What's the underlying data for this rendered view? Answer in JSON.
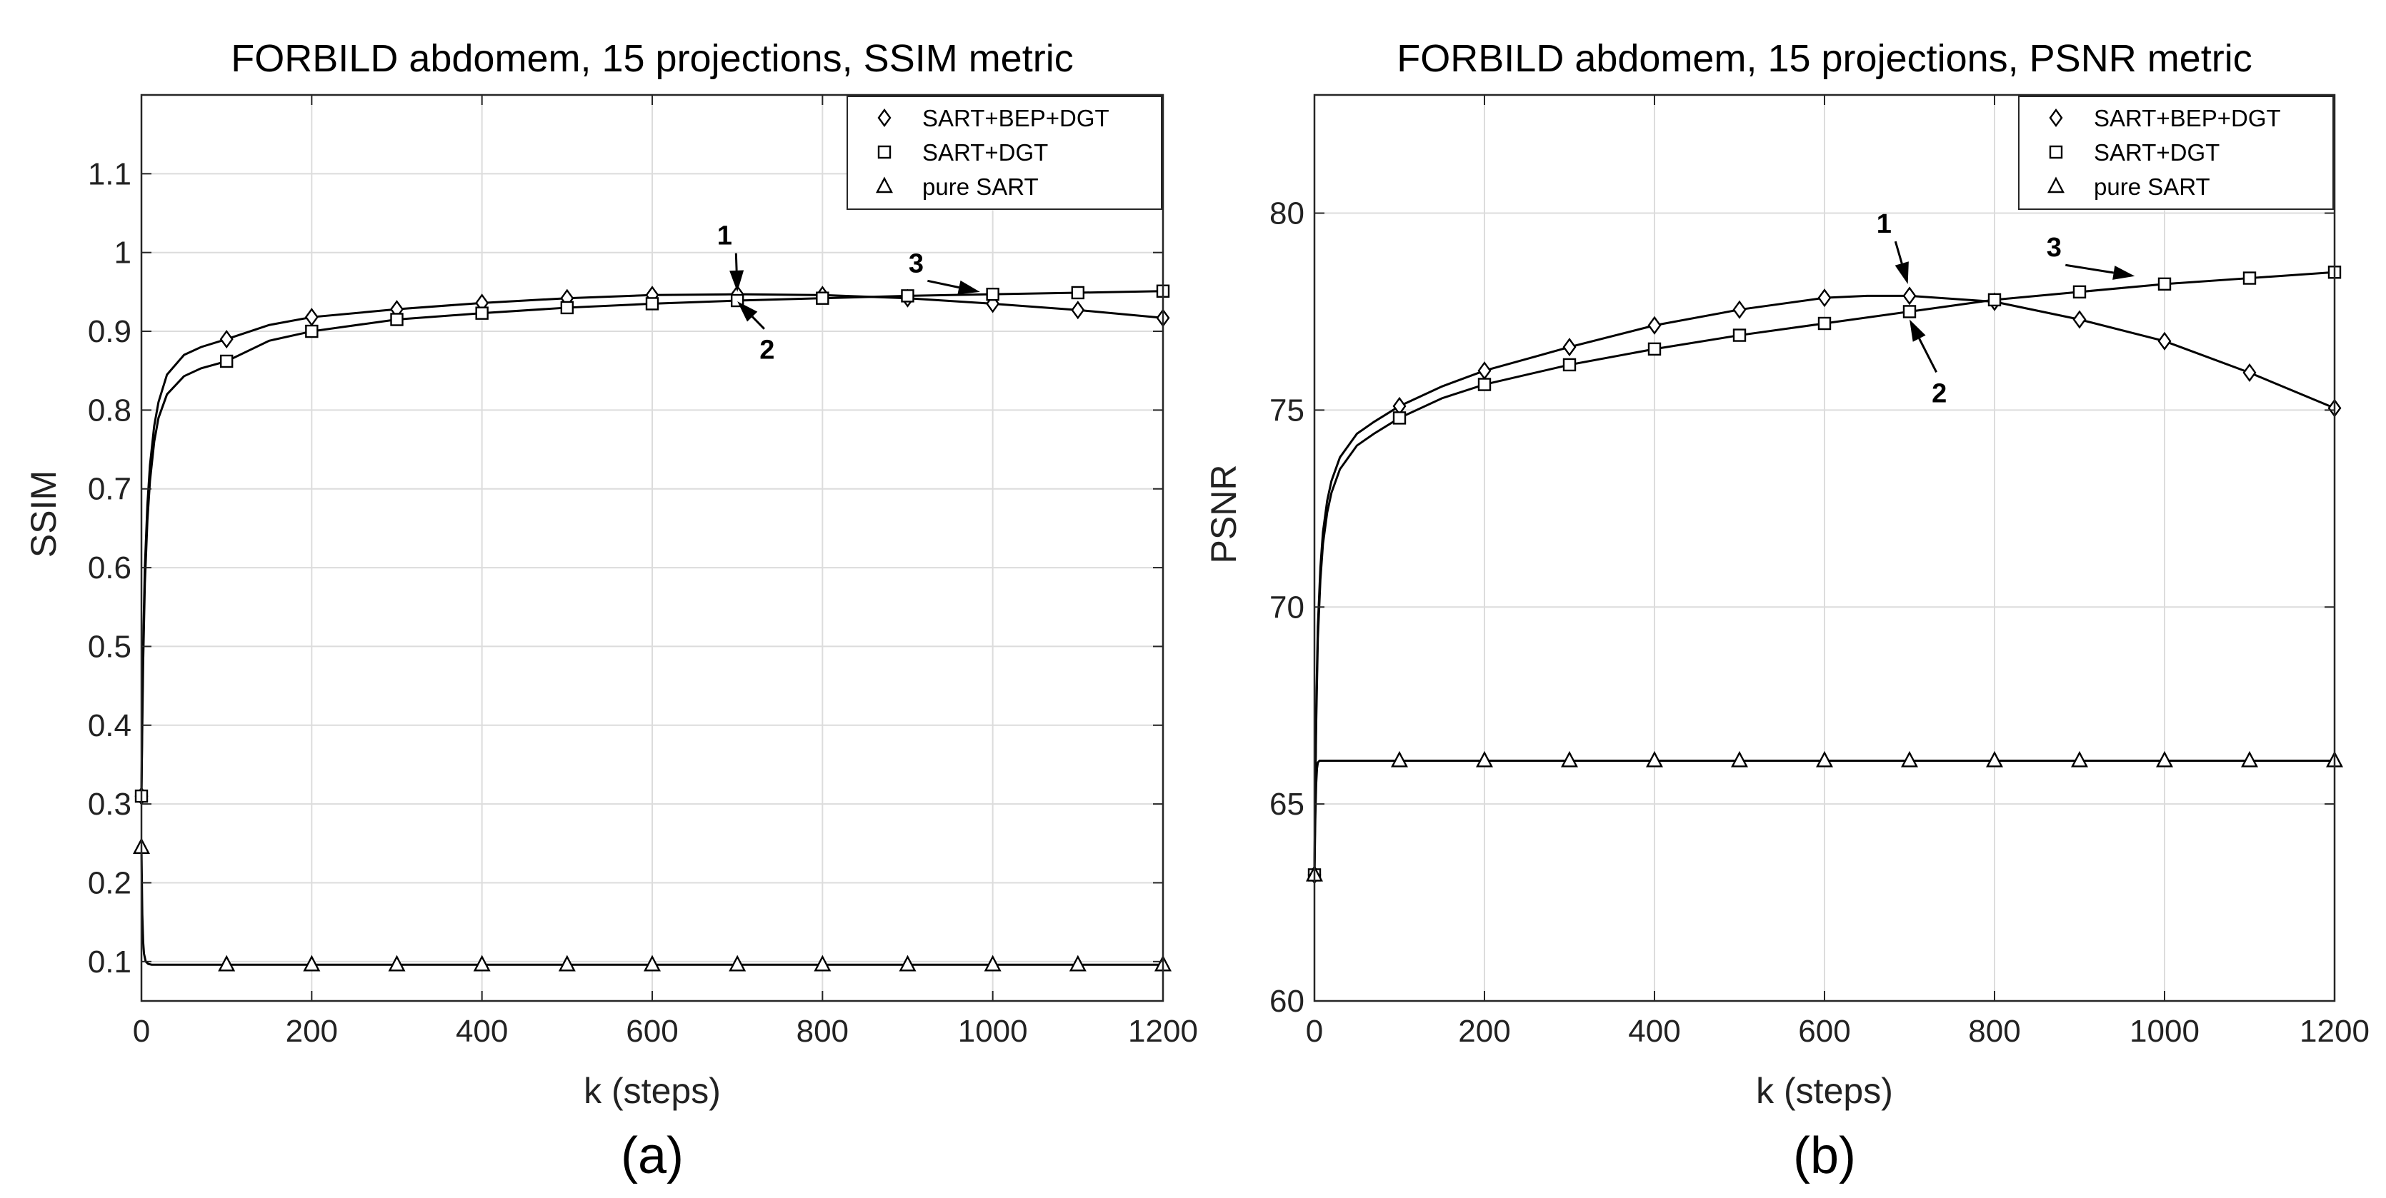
{
  "chart_data": [
    {
      "type": "line",
      "panel_label": "(a)",
      "title": "FORBILD abdomem, 15 projections, SSIM metric",
      "xlabel": "k (steps)",
      "ylabel": "SSIM",
      "xlim": [
        0,
        1200
      ],
      "ylim": [
        0.05,
        1.2
      ],
      "xticks": [
        0,
        200,
        400,
        600,
        800,
        1000,
        1200
      ],
      "yticks": [
        0.1,
        0.2,
        0.3,
        0.4,
        0.5,
        0.6,
        0.7,
        0.8,
        0.9,
        1,
        1.1
      ],
      "xtick_labels": [
        "0",
        "200",
        "400",
        "600",
        "800",
        "1000",
        "1200"
      ],
      "ytick_labels": [
        "0.1",
        "0.2",
        "0.3",
        "0.4",
        "0.5",
        "0.6",
        "0.7",
        "0.8",
        "0.9",
        "1",
        "1.1"
      ],
      "grid": true,
      "legend_position": "top-right",
      "series": [
        {
          "name": "SART+BEP+DGT",
          "marker": "diamond",
          "x": [
            0,
            1,
            2,
            4,
            7,
            10,
            15,
            20,
            30,
            50,
            70,
            100,
            150,
            200,
            300,
            400,
            500,
            600,
            700,
            800,
            900,
            1000,
            1100,
            1200
          ],
          "y": [
            0.31,
            0.42,
            0.5,
            0.6,
            0.68,
            0.73,
            0.78,
            0.81,
            0.845,
            0.87,
            0.88,
            0.89,
            0.908,
            0.918,
            0.928,
            0.936,
            0.942,
            0.946,
            0.947,
            0.946,
            0.942,
            0.935,
            0.927,
            0.917
          ],
          "marker_x": [
            0,
            100,
            200,
            300,
            400,
            500,
            600,
            700,
            800,
            900,
            1000,
            1100,
            1200
          ]
        },
        {
          "name": "SART+DGT",
          "marker": "square",
          "x": [
            0,
            1,
            2,
            4,
            7,
            10,
            15,
            20,
            30,
            50,
            70,
            100,
            150,
            200,
            300,
            400,
            500,
            600,
            700,
            800,
            900,
            1000,
            1100,
            1200
          ],
          "y": [
            0.31,
            0.4,
            0.48,
            0.58,
            0.66,
            0.71,
            0.76,
            0.79,
            0.82,
            0.843,
            0.853,
            0.862,
            0.888,
            0.9,
            0.915,
            0.923,
            0.93,
            0.935,
            0.939,
            0.942,
            0.945,
            0.947,
            0.949,
            0.951
          ],
          "marker_x": [
            0,
            100,
            200,
            300,
            400,
            500,
            600,
            700,
            800,
            900,
            1000,
            1100,
            1200
          ]
        },
        {
          "name": "pure SART",
          "marker": "triangle",
          "x": [
            0,
            1,
            2,
            3,
            5,
            8,
            12,
            20,
            100,
            200,
            300,
            400,
            500,
            600,
            700,
            800,
            900,
            1000,
            1100,
            1200
          ],
          "y": [
            0.245,
            0.16,
            0.125,
            0.11,
            0.1,
            0.097,
            0.096,
            0.096,
            0.096,
            0.096,
            0.096,
            0.096,
            0.096,
            0.096,
            0.096,
            0.096,
            0.096,
            0.096,
            0.096,
            0.096
          ],
          "marker_x": [
            0,
            100,
            200,
            300,
            400,
            500,
            600,
            700,
            800,
            900,
            1000,
            1100,
            1200
          ]
        }
      ],
      "annotations": [
        {
          "text": "1",
          "x": 685,
          "y": 1.01,
          "arrow_to": [
            700,
            0.95
          ]
        },
        {
          "text": "2",
          "x": 735,
          "y": 0.865,
          "arrow_to": [
            700,
            0.938
          ]
        },
        {
          "text": "3",
          "x": 910,
          "y": 0.975,
          "arrow_to": [
            985,
            0.95
          ]
        }
      ]
    },
    {
      "type": "line",
      "panel_label": "(b)",
      "title": "FORBILD abdomem, 15 projections, PSNR metric",
      "xlabel": "k (steps)",
      "ylabel": "PSNR",
      "xlim": [
        0,
        1200
      ],
      "ylim": [
        60,
        83
      ],
      "xticks": [
        0,
        200,
        400,
        600,
        800,
        1000,
        1200
      ],
      "yticks": [
        60,
        65,
        70,
        75,
        80
      ],
      "xtick_labels": [
        "0",
        "200",
        "400",
        "600",
        "800",
        "1000",
        "1200"
      ],
      "ytick_labels": [
        "60",
        "65",
        "70",
        "75",
        "80"
      ],
      "grid": true,
      "legend_position": "top-right",
      "series": [
        {
          "name": "SART+BEP+DGT",
          "marker": "diamond",
          "x": [
            0,
            1,
            2,
            4,
            7,
            10,
            15,
            20,
            30,
            50,
            70,
            100,
            150,
            200,
            300,
            400,
            500,
            600,
            650,
            700,
            800,
            900,
            1000,
            1100,
            1200
          ],
          "y": [
            63.2,
            65.5,
            67.3,
            69.5,
            71.0,
            71.9,
            72.7,
            73.2,
            73.8,
            74.4,
            74.7,
            75.1,
            75.6,
            76.0,
            76.6,
            77.15,
            77.55,
            77.85,
            77.9,
            77.9,
            77.75,
            77.3,
            76.75,
            75.95,
            75.05
          ],
          "marker_x": [
            0,
            100,
            200,
            300,
            400,
            500,
            600,
            700,
            800,
            900,
            1000,
            1100,
            1200
          ]
        },
        {
          "name": "SART+DGT",
          "marker": "square",
          "x": [
            0,
            1,
            2,
            4,
            7,
            10,
            15,
            20,
            30,
            50,
            70,
            100,
            150,
            200,
            300,
            400,
            500,
            600,
            700,
            800,
            900,
            1000,
            1100,
            1200
          ],
          "y": [
            63.2,
            65.3,
            67.0,
            69.2,
            70.7,
            71.6,
            72.4,
            72.9,
            73.5,
            74.1,
            74.4,
            74.8,
            75.3,
            75.65,
            76.15,
            76.55,
            76.9,
            77.2,
            77.5,
            77.8,
            78.0,
            78.2,
            78.35,
            78.5
          ],
          "marker_x": [
            0,
            100,
            200,
            300,
            400,
            500,
            600,
            700,
            800,
            900,
            1000,
            1100,
            1200
          ]
        },
        {
          "name": "pure SART",
          "marker": "triangle",
          "x": [
            0,
            1,
            2,
            3,
            4,
            6,
            8,
            10,
            100,
            200,
            300,
            400,
            500,
            600,
            700,
            800,
            900,
            1000,
            1100,
            1200
          ],
          "y": [
            63.2,
            64.6,
            65.5,
            65.9,
            66.05,
            66.1,
            66.1,
            66.1,
            66.1,
            66.1,
            66.1,
            66.1,
            66.1,
            66.1,
            66.1,
            66.1,
            66.1,
            66.1,
            66.1,
            66.1
          ],
          "marker_x": [
            0,
            100,
            200,
            300,
            400,
            500,
            600,
            700,
            800,
            900,
            1000,
            1100,
            1200
          ]
        }
      ],
      "annotations": [
        {
          "text": "1",
          "x": 670,
          "y": 79.5,
          "arrow_to": [
            698,
            78.2
          ]
        },
        {
          "text": "2",
          "x": 735,
          "y": 75.2,
          "arrow_to": [
            700,
            77.3
          ]
        },
        {
          "text": "3",
          "x": 870,
          "y": 78.9,
          "arrow_to": [
            965,
            78.4
          ]
        }
      ]
    }
  ]
}
